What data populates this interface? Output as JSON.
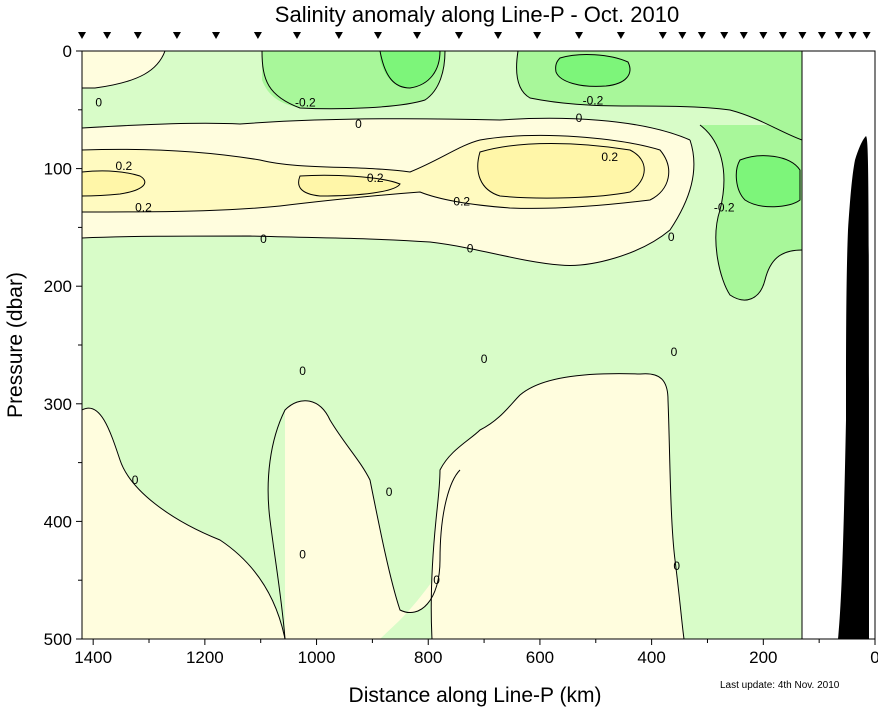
{
  "chart_data": {
    "type": "heatmap",
    "title": "Salinity anomaly along Line-P - Oct. 2010",
    "xlabel": "Distance along Line-P (km)",
    "ylabel": "Pressure (dbar)",
    "xlim": [
      1420,
      0
    ],
    "ylim": [
      0,
      500
    ],
    "x_ticks": [
      1400,
      1200,
      1000,
      800,
      600,
      400,
      200,
      0
    ],
    "y_ticks": [
      0,
      100,
      200,
      300,
      400,
      500
    ],
    "data_extent_km": [
      1420,
      125
    ],
    "contour_levels": [
      -0.2,
      0,
      0.2
    ],
    "contour_labels": [
      {
        "text": "0",
        "x": 1390,
        "y": 44
      },
      {
        "text": "-0.2",
        "x": 1020,
        "y": 44
      },
      {
        "text": "0",
        "x": 925,
        "y": 62
      },
      {
        "text": "-0.2",
        "x": 505,
        "y": 42
      },
      {
        "text": "0",
        "x": 530,
        "y": 57
      },
      {
        "text": "0.2",
        "x": 1345,
        "y": 98
      },
      {
        "text": "0.2",
        "x": 895,
        "y": 108
      },
      {
        "text": "0.2",
        "x": 475,
        "y": 90
      },
      {
        "text": "0.2",
        "x": 1310,
        "y": 133
      },
      {
        "text": "0.2",
        "x": 740,
        "y": 128
      },
      {
        "text": "-0.2",
        "x": 270,
        "y": 133
      },
      {
        "text": "0",
        "x": 1095,
        "y": 160
      },
      {
        "text": "0",
        "x": 725,
        "y": 168
      },
      {
        "text": "0",
        "x": 365,
        "y": 158
      },
      {
        "text": "0",
        "x": 1025,
        "y": 272
      },
      {
        "text": "0",
        "x": 700,
        "y": 262
      },
      {
        "text": "0",
        "x": 360,
        "y": 256
      },
      {
        "text": "0",
        "x": 1325,
        "y": 365
      },
      {
        "text": "0",
        "x": 870,
        "y": 375
      },
      {
        "text": "0",
        "x": 1025,
        "y": 428
      },
      {
        "text": "0",
        "x": 785,
        "y": 450
      },
      {
        "text": "0",
        "x": 355,
        "y": 438
      }
    ],
    "station_markers_km": [
      1420,
      1375,
      1320,
      1250,
      1180,
      1105,
      1035,
      960,
      890,
      820,
      745,
      675,
      605,
      530,
      455,
      380,
      345,
      310,
      270,
      235,
      200,
      165,
      130,
      95,
      65,
      40,
      15
    ],
    "bathymetry_color": "#000000",
    "colors": {
      "low_2": "#7df57a",
      "low_1": "#a8f79a",
      "near_neg": "#d8fcc8",
      "near_pos": "#fffdde",
      "high_1": "#fffac0",
      "high_2": "#fff6a8"
    }
  },
  "footnote": "Last update: 4th Nov. 2010"
}
